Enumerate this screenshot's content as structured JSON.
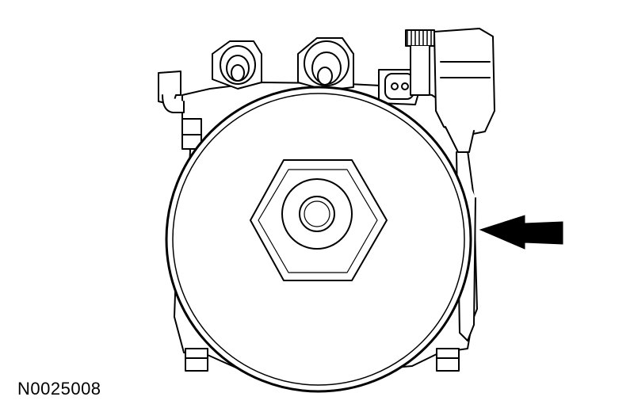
{
  "figure": {
    "id_label": "N0025008",
    "line_color": "#000000",
    "fill_color": "#ffffff"
  }
}
